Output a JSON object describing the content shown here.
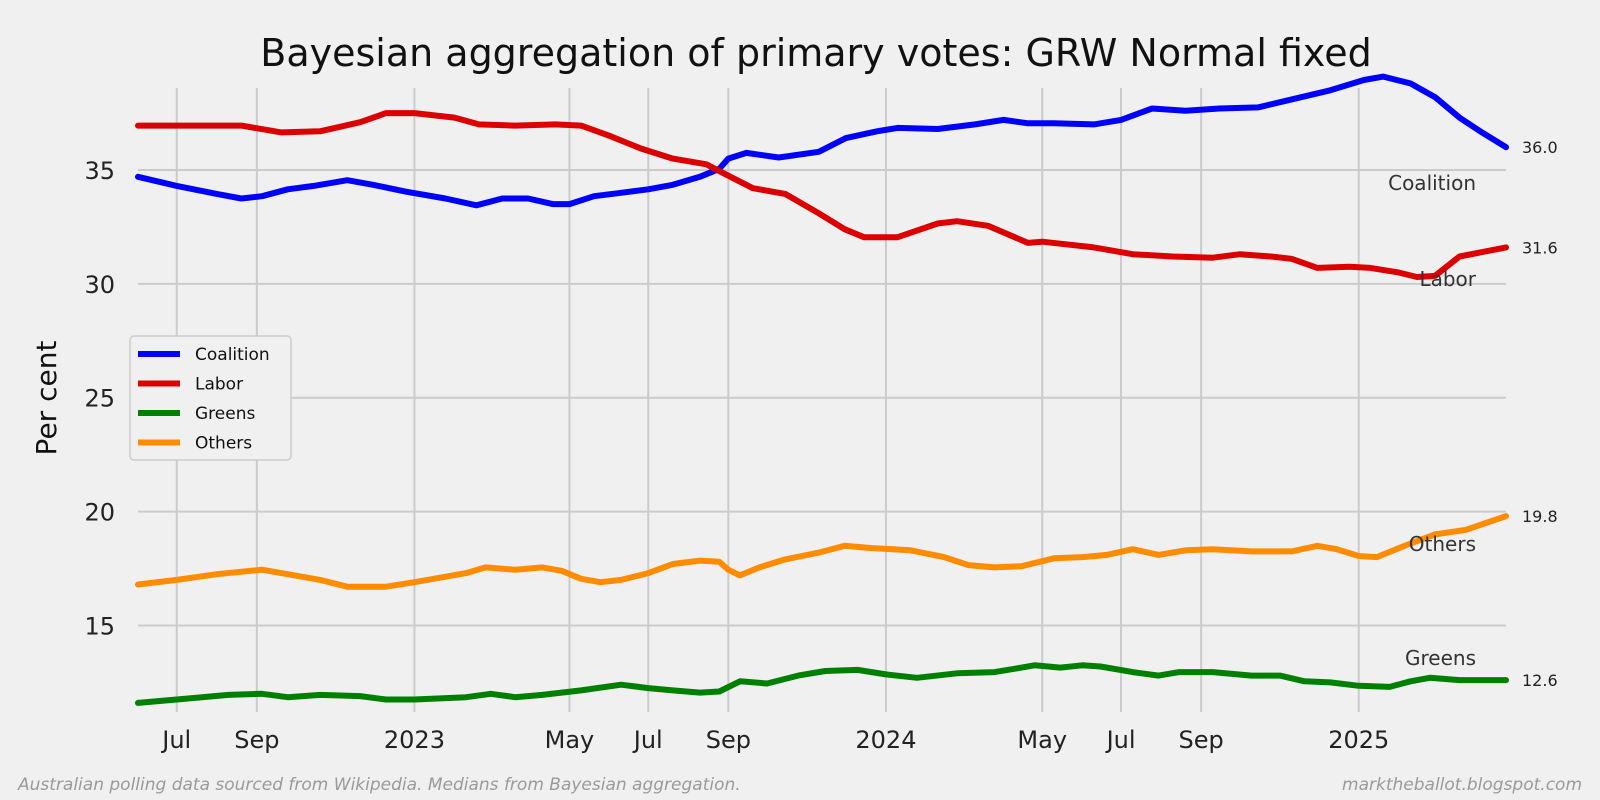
{
  "chart_data": {
    "type": "line",
    "title": "Bayesian aggregation of primary votes: GRW Normal fixed",
    "ylabel": "Per cent",
    "xlabel": "",
    "ylim": [
      11.2,
      38.6
    ],
    "xlim": [
      "2022-06-01",
      "2025-04-25"
    ],
    "yticks": [
      15,
      20,
      25,
      30,
      35
    ],
    "xticks": [
      {
        "label": "Jul",
        "date": "2022-07-01"
      },
      {
        "label": "Sep",
        "date": "2022-09-01"
      },
      {
        "label": "2023",
        "date": "2023-01-01"
      },
      {
        "label": "May",
        "date": "2023-05-01"
      },
      {
        "label": "Jul",
        "date": "2023-07-01"
      },
      {
        "label": "Sep",
        "date": "2023-09-01"
      },
      {
        "label": "2024",
        "date": "2024-01-01"
      },
      {
        "label": "May",
        "date": "2024-05-01"
      },
      {
        "label": "Jul",
        "date": "2024-07-01"
      },
      {
        "label": "Sep",
        "date": "2024-09-01"
      },
      {
        "label": "2025",
        "date": "2025-01-01"
      }
    ],
    "grid": true,
    "legend_position": "center-left",
    "series": [
      {
        "name": "Coalition",
        "color": "#0000ff",
        "end_label": "36.0",
        "points": [
          [
            "2022-06-01",
            34.7
          ],
          [
            "2022-07-01",
            34.3
          ],
          [
            "2022-08-01",
            33.95
          ],
          [
            "2022-08-20",
            33.75
          ],
          [
            "2022-09-05",
            33.85
          ],
          [
            "2022-09-25",
            34.15
          ],
          [
            "2022-10-15",
            34.3
          ],
          [
            "2022-11-10",
            34.55
          ],
          [
            "2022-11-30",
            34.35
          ],
          [
            "2022-12-25",
            34.05
          ],
          [
            "2023-01-25",
            33.75
          ],
          [
            "2023-02-18",
            33.45
          ],
          [
            "2023-03-10",
            33.75
          ],
          [
            "2023-03-30",
            33.75
          ],
          [
            "2023-04-18",
            33.5
          ],
          [
            "2023-05-01",
            33.5
          ],
          [
            "2023-05-20",
            33.85
          ],
          [
            "2023-06-10",
            34.0
          ],
          [
            "2023-07-01",
            34.15
          ],
          [
            "2023-07-20",
            34.35
          ],
          [
            "2023-08-10",
            34.7
          ],
          [
            "2023-08-25",
            35.05
          ],
          [
            "2023-09-01",
            35.5
          ],
          [
            "2023-09-15",
            35.75
          ],
          [
            "2023-10-10",
            35.55
          ],
          [
            "2023-11-10",
            35.8
          ],
          [
            "2023-12-01",
            36.4
          ],
          [
            "2023-12-25",
            36.7
          ],
          [
            "2024-01-10",
            36.85
          ],
          [
            "2024-02-10",
            36.8
          ],
          [
            "2024-03-10",
            37.0
          ],
          [
            "2024-04-01",
            37.2
          ],
          [
            "2024-04-20",
            37.05
          ],
          [
            "2024-05-10",
            37.05
          ],
          [
            "2024-06-10",
            37.0
          ],
          [
            "2024-07-01",
            37.2
          ],
          [
            "2024-07-25",
            37.7
          ],
          [
            "2024-08-20",
            37.6
          ],
          [
            "2024-09-15",
            37.7
          ],
          [
            "2024-10-15",
            37.75
          ],
          [
            "2024-11-10",
            38.1
          ],
          [
            "2024-12-10",
            38.5
          ],
          [
            "2025-01-05",
            38.95
          ],
          [
            "2025-01-20",
            39.1
          ],
          [
            "2025-02-10",
            38.8
          ],
          [
            "2025-03-01",
            38.2
          ],
          [
            "2025-03-20",
            37.3
          ],
          [
            "2025-04-05",
            36.7
          ],
          [
            "2025-04-25",
            36.0
          ]
        ]
      },
      {
        "name": "Labor",
        "color": "#dd0000",
        "end_label": "31.6",
        "points": [
          [
            "2022-06-01",
            36.95
          ],
          [
            "2022-08-20",
            36.95
          ],
          [
            "2022-09-20",
            36.65
          ],
          [
            "2022-10-20",
            36.7
          ],
          [
            "2022-11-20",
            37.1
          ],
          [
            "2022-12-10",
            37.5
          ],
          [
            "2023-01-01",
            37.5
          ],
          [
            "2023-02-01",
            37.3
          ],
          [
            "2023-02-20",
            37.0
          ],
          [
            "2023-03-20",
            36.95
          ],
          [
            "2023-04-20",
            37.0
          ],
          [
            "2023-05-10",
            36.95
          ],
          [
            "2023-06-01",
            36.5
          ],
          [
            "2023-06-25",
            35.95
          ],
          [
            "2023-07-20",
            35.5
          ],
          [
            "2023-08-15",
            35.25
          ],
          [
            "2023-09-01",
            34.75
          ],
          [
            "2023-09-20",
            34.2
          ],
          [
            "2023-10-15",
            33.95
          ],
          [
            "2023-11-10",
            33.1
          ],
          [
            "2023-11-30",
            32.4
          ],
          [
            "2023-12-15",
            32.05
          ],
          [
            "2024-01-10",
            32.05
          ],
          [
            "2024-02-10",
            32.65
          ],
          [
            "2024-02-25",
            32.75
          ],
          [
            "2024-03-20",
            32.55
          ],
          [
            "2024-04-20",
            31.8
          ],
          [
            "2024-05-01",
            31.85
          ],
          [
            "2024-06-10",
            31.6
          ],
          [
            "2024-07-10",
            31.3
          ],
          [
            "2024-08-10",
            31.2
          ],
          [
            "2024-09-10",
            31.15
          ],
          [
            "2024-10-01",
            31.3
          ],
          [
            "2024-10-25",
            31.2
          ],
          [
            "2024-11-10",
            31.1
          ],
          [
            "2024-11-30",
            30.7
          ],
          [
            "2024-12-25",
            30.75
          ],
          [
            "2025-01-10",
            30.7
          ],
          [
            "2025-02-01",
            30.5
          ],
          [
            "2025-02-15",
            30.3
          ],
          [
            "2025-03-01",
            30.35
          ],
          [
            "2025-03-20",
            31.2
          ],
          [
            "2025-04-25",
            31.6
          ]
        ]
      },
      {
        "name": "Greens",
        "color": "#008000",
        "end_label": "12.6",
        "points": [
          [
            "2022-06-01",
            11.6
          ],
          [
            "2022-07-01",
            11.75
          ],
          [
            "2022-08-10",
            11.95
          ],
          [
            "2022-09-05",
            12.0
          ],
          [
            "2022-09-25",
            11.85
          ],
          [
            "2022-10-20",
            11.95
          ],
          [
            "2022-11-20",
            11.9
          ],
          [
            "2022-12-10",
            11.75
          ],
          [
            "2023-01-01",
            11.75
          ],
          [
            "2023-02-10",
            11.85
          ],
          [
            "2023-03-01",
            12.0
          ],
          [
            "2023-03-20",
            11.85
          ],
          [
            "2023-04-10",
            11.95
          ],
          [
            "2023-05-10",
            12.15
          ],
          [
            "2023-06-10",
            12.4
          ],
          [
            "2023-07-01",
            12.25
          ],
          [
            "2023-07-20",
            12.15
          ],
          [
            "2023-08-10",
            12.05
          ],
          [
            "2023-08-25",
            12.1
          ],
          [
            "2023-09-10",
            12.55
          ],
          [
            "2023-10-01",
            12.45
          ],
          [
            "2023-10-25",
            12.8
          ],
          [
            "2023-11-15",
            13.0
          ],
          [
            "2023-12-10",
            13.05
          ],
          [
            "2024-01-01",
            12.85
          ],
          [
            "2024-01-25",
            12.7
          ],
          [
            "2024-02-25",
            12.9
          ],
          [
            "2024-03-25",
            12.95
          ],
          [
            "2024-04-15",
            13.15
          ],
          [
            "2024-04-25",
            13.25
          ],
          [
            "2024-05-15",
            13.15
          ],
          [
            "2024-06-01",
            13.25
          ],
          [
            "2024-06-15",
            13.2
          ],
          [
            "2024-07-10",
            12.95
          ],
          [
            "2024-07-30",
            12.8
          ],
          [
            "2024-08-15",
            12.95
          ],
          [
            "2024-09-10",
            12.95
          ],
          [
            "2024-10-10",
            12.8
          ],
          [
            "2024-11-01",
            12.8
          ],
          [
            "2024-11-20",
            12.55
          ],
          [
            "2024-12-10",
            12.5
          ],
          [
            "2025-01-01",
            12.35
          ],
          [
            "2025-01-25",
            12.3
          ],
          [
            "2025-02-10",
            12.55
          ],
          [
            "2025-02-25",
            12.7
          ],
          [
            "2025-03-20",
            12.6
          ],
          [
            "2025-04-25",
            12.6
          ]
        ]
      },
      {
        "name": "Others",
        "color": "#ff8c00",
        "end_label": "19.8",
        "points": [
          [
            "2022-06-01",
            16.8
          ],
          [
            "2022-07-01",
            17.0
          ],
          [
            "2022-08-01",
            17.25
          ],
          [
            "2022-09-05",
            17.45
          ],
          [
            "2022-09-25",
            17.25
          ],
          [
            "2022-10-20",
            17.0
          ],
          [
            "2022-11-10",
            16.7
          ],
          [
            "2022-12-10",
            16.7
          ],
          [
            "2023-01-01",
            16.9
          ],
          [
            "2023-02-10",
            17.3
          ],
          [
            "2023-02-25",
            17.55
          ],
          [
            "2023-03-20",
            17.45
          ],
          [
            "2023-04-10",
            17.55
          ],
          [
            "2023-04-25",
            17.4
          ],
          [
            "2023-05-10",
            17.05
          ],
          [
            "2023-05-25",
            16.9
          ],
          [
            "2023-06-10",
            17.0
          ],
          [
            "2023-07-01",
            17.3
          ],
          [
            "2023-07-20",
            17.7
          ],
          [
            "2023-08-10",
            17.85
          ],
          [
            "2023-08-25",
            17.8
          ],
          [
            "2023-09-01",
            17.45
          ],
          [
            "2023-09-10",
            17.2
          ],
          [
            "2023-09-25",
            17.55
          ],
          [
            "2023-10-15",
            17.9
          ],
          [
            "2023-11-10",
            18.2
          ],
          [
            "2023-11-30",
            18.5
          ],
          [
            "2023-12-20",
            18.4
          ],
          [
            "2024-01-20",
            18.3
          ],
          [
            "2024-02-15",
            18.0
          ],
          [
            "2024-03-05",
            17.65
          ],
          [
            "2024-03-25",
            17.55
          ],
          [
            "2024-04-15",
            17.6
          ],
          [
            "2024-05-10",
            17.95
          ],
          [
            "2024-06-01",
            18.0
          ],
          [
            "2024-06-20",
            18.1
          ],
          [
            "2024-07-10",
            18.35
          ],
          [
            "2024-07-30",
            18.1
          ],
          [
            "2024-08-20",
            18.3
          ],
          [
            "2024-09-10",
            18.35
          ],
          [
            "2024-10-10",
            18.25
          ],
          [
            "2024-11-10",
            18.25
          ],
          [
            "2024-11-30",
            18.5
          ],
          [
            "2024-12-15",
            18.35
          ],
          [
            "2025-01-01",
            18.05
          ],
          [
            "2025-01-15",
            18.0
          ],
          [
            "2025-02-10",
            18.6
          ],
          [
            "2025-03-01",
            19.0
          ],
          [
            "2025-03-25",
            19.2
          ],
          [
            "2025-04-25",
            19.8
          ]
        ]
      }
    ]
  },
  "footer": {
    "left": "Australian polling data sourced from Wikipedia. Medians from Bayesian aggregation.",
    "right": "marktheballot.blogspot.com"
  }
}
